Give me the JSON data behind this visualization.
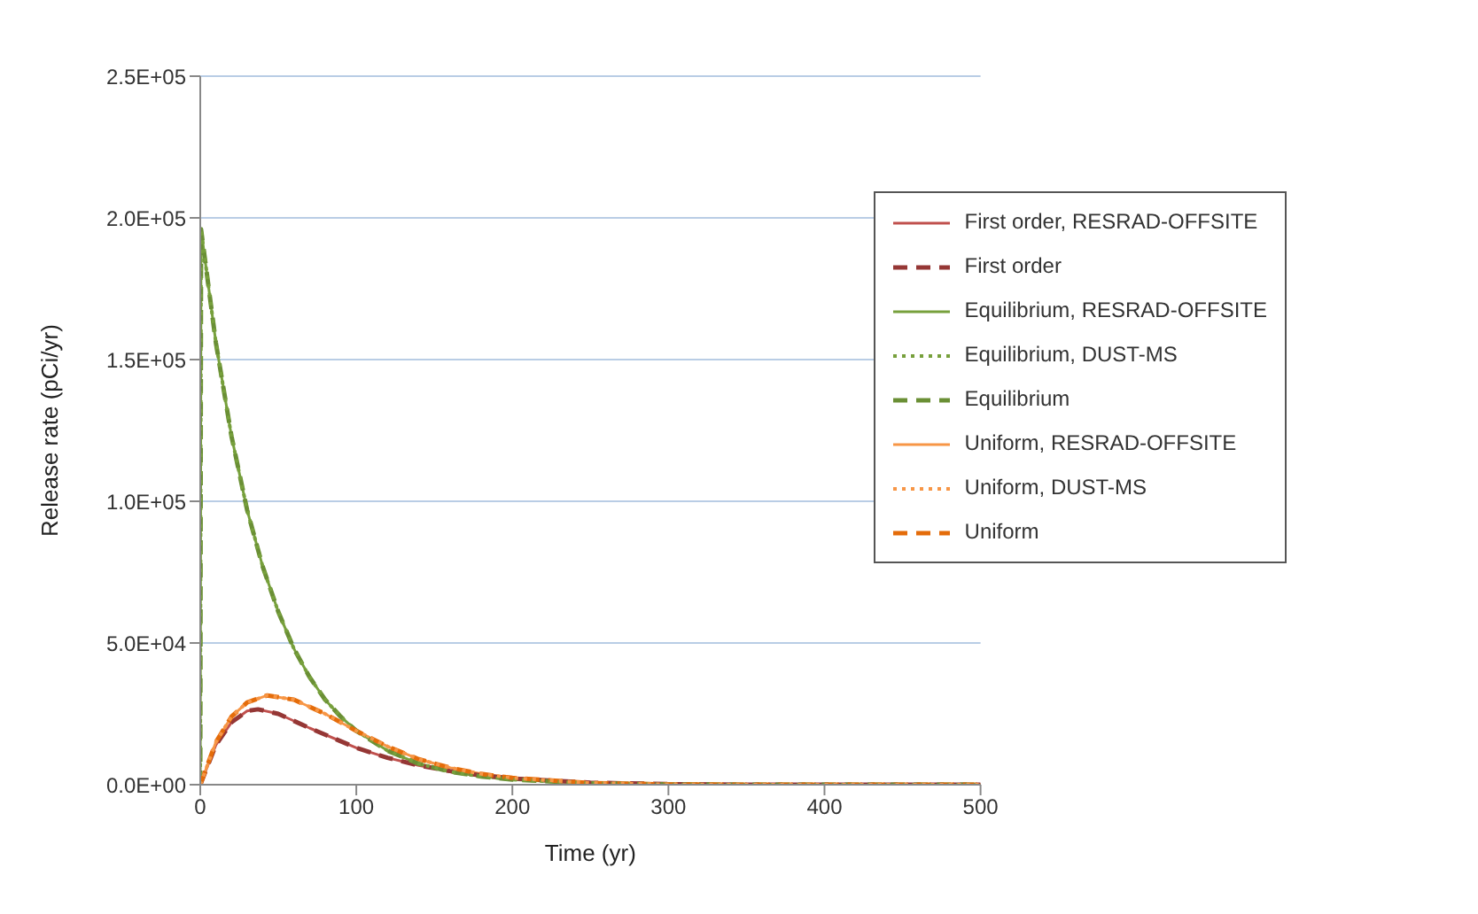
{
  "chart_data": {
    "type": "line",
    "xlabel": "Time (yr)",
    "ylabel": "Release rate (pCi/yr)",
    "xlim": [
      0,
      500
    ],
    "xticks": [
      0,
      100,
      200,
      300,
      400,
      500
    ],
    "ylim": [
      0,
      250000
    ],
    "yticks": [
      {
        "value": 0,
        "label": "0.0E+00"
      },
      {
        "value": 50000,
        "label": "5.0E+04"
      },
      {
        "value": 100000,
        "label": "1.0E+05"
      },
      {
        "value": 150000,
        "label": "1.5E+05"
      },
      {
        "value": 200000,
        "label": "2.0E+05"
      },
      {
        "value": 250000,
        "label": "2.5E+05"
      }
    ],
    "grid": "y",
    "legend": "top right",
    "series": [
      {
        "name": "First order, RESRAD-OFFSITE",
        "color": "#c0504d",
        "line_style": "solid",
        "x": [
          0,
          10,
          20,
          30,
          37,
          50,
          70,
          100,
          120,
          140,
          160,
          180,
          200,
          250,
          300,
          350,
          500
        ],
        "values": [
          0,
          14000,
          22000,
          26000,
          26600,
          25000,
          20000,
          13000,
          9500,
          6800,
          4800,
          3300,
          2200,
          700,
          200,
          0,
          0
        ]
      },
      {
        "name": "First order",
        "color": "#953735",
        "line_style": "dashed",
        "x": [
          0,
          10,
          20,
          30,
          37,
          50,
          70,
          100,
          120,
          140,
          160,
          180,
          200,
          250,
          300,
          350,
          500
        ],
        "values": [
          0,
          14000,
          22000,
          26000,
          26600,
          25000,
          20000,
          13000,
          9500,
          6800,
          4800,
          3300,
          2200,
          700,
          200,
          0,
          0
        ]
      },
      {
        "name": "Equilibrium, RESRAD-OFFSITE",
        "color": "#77a03c",
        "line_style": "solid",
        "x": [
          0,
          0.5,
          10,
          20,
          30,
          40,
          50,
          60,
          70,
          80,
          90,
          100,
          120,
          140,
          160,
          180,
          200,
          250,
          300,
          350,
          500
        ],
        "values": [
          0,
          196000,
          156000,
          123000,
          97000,
          77000,
          61000,
          48000,
          38000,
          30000,
          24000,
          19000,
          12000,
          7400,
          4600,
          2900,
          1800,
          500,
          100,
          0,
          0
        ]
      },
      {
        "name": "Equilibrium, DUST-MS",
        "color": "#77a03c",
        "line_style": "dotted",
        "x": [
          0,
          0.5,
          10,
          20,
          30,
          40,
          50,
          60,
          70,
          80,
          90,
          100,
          120,
          140,
          160,
          180,
          200,
          250,
          300,
          350,
          500
        ],
        "values": [
          0,
          196000,
          156000,
          123000,
          97000,
          77000,
          61000,
          48000,
          38000,
          30000,
          24000,
          19000,
          12000,
          7400,
          4600,
          2900,
          1800,
          500,
          100,
          0,
          0
        ]
      },
      {
        "name": "Equilibrium",
        "color": "#6a8f35",
        "line_style": "dashed",
        "x": [
          0,
          0.5,
          10,
          20,
          30,
          40,
          50,
          60,
          70,
          80,
          90,
          100,
          120,
          140,
          160,
          180,
          200,
          250,
          300,
          350,
          500
        ],
        "values": [
          0,
          196000,
          156000,
          123000,
          97000,
          77000,
          61000,
          48000,
          38000,
          30000,
          24000,
          19000,
          12000,
          7400,
          4600,
          2900,
          1800,
          500,
          100,
          0,
          0
        ]
      },
      {
        "name": "Uniform, RESRAD-OFFSITE",
        "color": "#f79646",
        "line_style": "solid",
        "x": [
          0,
          10,
          20,
          30,
          43,
          60,
          80,
          100,
          120,
          140,
          160,
          180,
          200,
          250,
          300,
          350,
          500
        ],
        "values": [
          0,
          15000,
          24000,
          29000,
          31500,
          30000,
          25000,
          19000,
          13500,
          9000,
          6000,
          3800,
          2400,
          600,
          100,
          0,
          0
        ]
      },
      {
        "name": "Uniform, DUST-MS",
        "color": "#f79646",
        "line_style": "dotted",
        "x": [
          0,
          10,
          20,
          30,
          43,
          60,
          80,
          100,
          120,
          140,
          160,
          180,
          200,
          250,
          300,
          350,
          500
        ],
        "values": [
          0,
          15000,
          24000,
          29000,
          31500,
          30000,
          25000,
          19000,
          13500,
          9000,
          6000,
          3800,
          2400,
          600,
          100,
          0,
          0
        ]
      },
      {
        "name": "Uniform",
        "color": "#e46c0a",
        "line_style": "dashed",
        "x": [
          0,
          10,
          20,
          30,
          43,
          60,
          80,
          100,
          120,
          140,
          160,
          180,
          200,
          250,
          300,
          350,
          500
        ],
        "values": [
          0,
          15000,
          24000,
          29000,
          31500,
          30000,
          25000,
          19000,
          13500,
          9000,
          6000,
          3800,
          2400,
          600,
          100,
          0,
          0
        ]
      }
    ]
  }
}
